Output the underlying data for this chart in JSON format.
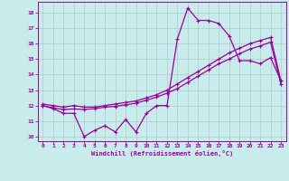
{
  "xlabel": "Windchill (Refroidissement éolien,°C)",
  "background_color": "#c8ecec",
  "line_color": "#990099",
  "grid_color": "#b0c8c8",
  "xlim": [
    -0.5,
    23.5
  ],
  "ylim": [
    9.7,
    18.7
  ],
  "yticks": [
    10,
    11,
    12,
    13,
    14,
    15,
    16,
    17,
    18
  ],
  "xticks": [
    0,
    1,
    2,
    3,
    4,
    5,
    6,
    7,
    8,
    9,
    10,
    11,
    12,
    13,
    14,
    15,
    16,
    17,
    18,
    19,
    20,
    21,
    22,
    23
  ],
  "line1_x": [
    0,
    1,
    2,
    3,
    4,
    5,
    6,
    7,
    8,
    9,
    10,
    11,
    12,
    13,
    14,
    15,
    16,
    17,
    18,
    19,
    20,
    21,
    22,
    23
  ],
  "line1_y": [
    12.0,
    11.8,
    11.5,
    11.5,
    10.0,
    10.4,
    10.7,
    10.3,
    11.1,
    10.3,
    11.5,
    12.0,
    12.0,
    16.3,
    18.3,
    17.5,
    17.5,
    17.3,
    16.5,
    14.9,
    14.9,
    14.7,
    15.1,
    13.6
  ],
  "line2_x": [
    0,
    1,
    2,
    3,
    4,
    5,
    6,
    7,
    8,
    9,
    10,
    11,
    12,
    13,
    14,
    15,
    16,
    17,
    18,
    19,
    20,
    21,
    22,
    23
  ],
  "line2_y": [
    12.1,
    12.0,
    11.9,
    12.0,
    11.9,
    11.9,
    12.0,
    12.1,
    12.2,
    12.3,
    12.5,
    12.7,
    13.0,
    13.4,
    13.8,
    14.2,
    14.6,
    15.0,
    15.4,
    15.7,
    16.0,
    16.2,
    16.4,
    13.6
  ],
  "line3_x": [
    0,
    1,
    2,
    3,
    4,
    5,
    6,
    7,
    8,
    9,
    10,
    11,
    12,
    13,
    14,
    15,
    16,
    17,
    18,
    19,
    20,
    21,
    22,
    23
  ],
  "line3_y": [
    12.0,
    11.85,
    11.75,
    11.78,
    11.75,
    11.8,
    11.9,
    11.95,
    12.05,
    12.15,
    12.35,
    12.55,
    12.8,
    13.1,
    13.5,
    13.9,
    14.3,
    14.7,
    15.0,
    15.35,
    15.65,
    15.85,
    16.1,
    13.4
  ],
  "marker": "+",
  "markersize": 3,
  "linewidth": 0.9
}
